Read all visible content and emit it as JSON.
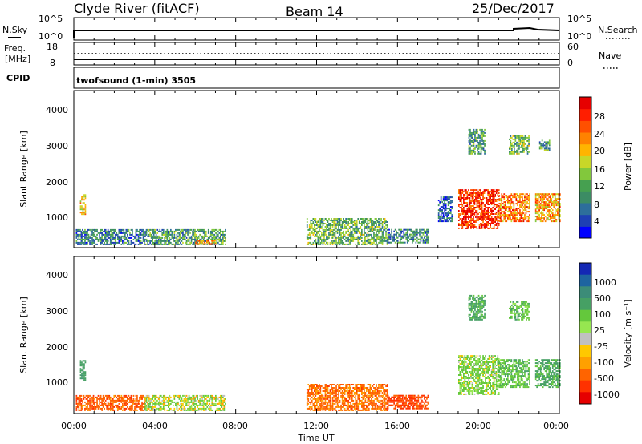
{
  "header": {
    "station": "Clyde River (fitACF)",
    "beam": "Beam 14",
    "date": "25/Dec/2017"
  },
  "noise_panel": {
    "left_label": "N.Sky",
    "right_label": "N.Search",
    "left_ticks": [
      "10^5",
      "10^0"
    ],
    "right_ticks": [
      "10^5",
      "10^0"
    ]
  },
  "freq_panel": {
    "left_label_1": "Freq.",
    "left_label_2": "[MHz]",
    "right_label": "Nave",
    "left_ticks": [
      "18",
      "8"
    ],
    "right_ticks": [
      "60",
      "0"
    ]
  },
  "cpid": {
    "label": "CPID",
    "mode": "twofsound (1-min) 3505"
  },
  "axes": {
    "ylabel": "Slant Range [km]",
    "xlabel": "Time UT",
    "y_ticks": [
      "1000",
      "2000",
      "3000",
      "4000"
    ],
    "x_ticks": [
      "00:00",
      "04:00",
      "08:00",
      "12:00",
      "16:00",
      "20:00",
      "00:00"
    ]
  },
  "power_colorbar": {
    "label": "Power [dB]",
    "ticks": [
      "4",
      "8",
      "12",
      "16",
      "20",
      "24",
      "28"
    ],
    "colors": [
      "#0000ff",
      "#1e3fb4",
      "#2d6e9b",
      "#3c8c64",
      "#46a050",
      "#82c83c",
      "#c8d728",
      "#ffb400",
      "#ff8200",
      "#ff5000",
      "#ff1e00",
      "#e60000"
    ]
  },
  "velocity_colorbar": {
    "label": "Velocity [m s⁻¹]",
    "ticks": [
      "1000",
      "500",
      "100",
      "25",
      "-25",
      "-100",
      "-500",
      "-1000"
    ],
    "colors": [
      "#1428b4",
      "#1e64a0",
      "#3c8c78",
      "#46a064",
      "#64c83c",
      "#96e650",
      "#c0c0c0",
      "#ffc800",
      "#ffa000",
      "#ff6400",
      "#ff3200",
      "#e60000"
    ]
  },
  "chart_data": {
    "type": "heatmap",
    "title": "Clyde River (fitACF)  Beam 14  25/Dec/2017",
    "xlabel": "Time UT",
    "ylabel": "Slant Range [km]",
    "xlim_hours": [
      0,
      24
    ],
    "ylim_km": [
      180,
      4600
    ],
    "power_range_db": [
      0,
      30
    ],
    "velocity_range_ms": [
      -1000,
      1000
    ],
    "power_regions": [
      {
        "t0": 0.3,
        "t1": 0.6,
        "r0": 1100,
        "r1": 1650,
        "p": 18
      },
      {
        "t0": 0.1,
        "t1": 3.5,
        "r0": 250,
        "r1": 700,
        "p": 8
      },
      {
        "t0": 3.5,
        "t1": 7.5,
        "r0": 250,
        "r1": 700,
        "p": 10
      },
      {
        "t0": 6.0,
        "t1": 7.0,
        "r0": 260,
        "r1": 380,
        "p": 22
      },
      {
        "t0": 11.5,
        "t1": 15.5,
        "r0": 250,
        "r1": 1000,
        "p": 12
      },
      {
        "t0": 15.5,
        "t1": 17.5,
        "r0": 300,
        "r1": 700,
        "p": 8
      },
      {
        "t0": 18.0,
        "t1": 18.7,
        "r0": 900,
        "r1": 1600,
        "p": 6
      },
      {
        "t0": 19.0,
        "t1": 21.0,
        "r0": 700,
        "r1": 1800,
        "p": 26
      },
      {
        "t0": 21.0,
        "t1": 22.5,
        "r0": 900,
        "r1": 1700,
        "p": 22
      },
      {
        "t0": 22.8,
        "t1": 24.0,
        "r0": 900,
        "r1": 1700,
        "p": 20
      },
      {
        "t0": 19.5,
        "t1": 20.3,
        "r0": 2800,
        "r1": 3500,
        "p": 10
      },
      {
        "t0": 21.5,
        "t1": 22.5,
        "r0": 2800,
        "r1": 3300,
        "p": 12
      },
      {
        "t0": 23.0,
        "t1": 23.5,
        "r0": 2900,
        "r1": 3200,
        "p": 10
      }
    ],
    "velocity_regions": [
      {
        "t0": 0.3,
        "t1": 0.6,
        "r0": 1100,
        "r1": 1650,
        "v": 400
      },
      {
        "t0": 0.1,
        "t1": 3.5,
        "r0": 250,
        "r1": 700,
        "v": -200
      },
      {
        "t0": 3.5,
        "t1": 7.5,
        "r0": 250,
        "r1": 700,
        "v": 60
      },
      {
        "t0": 11.5,
        "t1": 15.5,
        "r0": 250,
        "r1": 1000,
        "v": -150
      },
      {
        "t0": 15.5,
        "t1": 17.5,
        "r0": 300,
        "r1": 700,
        "v": -300
      },
      {
        "t0": 19.0,
        "t1": 21.0,
        "r0": 700,
        "r1": 1800,
        "v": 120
      },
      {
        "t0": 21.0,
        "t1": 22.5,
        "r0": 900,
        "r1": 1700,
        "v": 200
      },
      {
        "t0": 22.8,
        "t1": 24.0,
        "r0": 900,
        "r1": 1700,
        "v": 300
      },
      {
        "t0": 19.5,
        "t1": 20.3,
        "r0": 2800,
        "r1": 3500,
        "v": 300
      },
      {
        "t0": 21.5,
        "t1": 22.5,
        "r0": 2800,
        "r1": 3300,
        "v": 200
      }
    ]
  }
}
